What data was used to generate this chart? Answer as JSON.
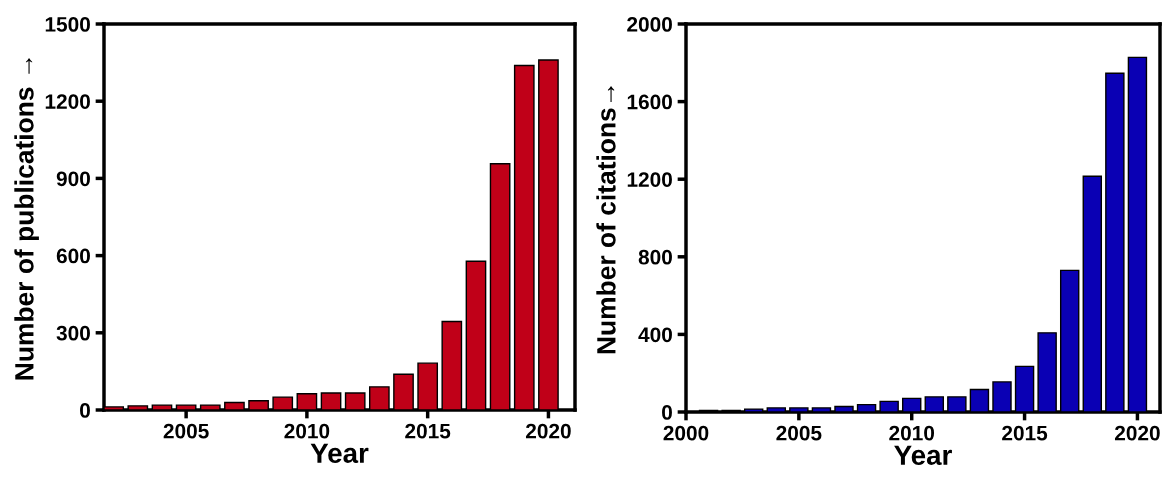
{
  "chart_data": [
    {
      "type": "bar",
      "xlabel": "Year",
      "ylabel": "Number of publications →",
      "x": [
        2002,
        2003,
        2004,
        2005,
        2006,
        2007,
        2008,
        2009,
        2010,
        2011,
        2012,
        2013,
        2014,
        2015,
        2016,
        2017,
        2018,
        2019,
        2020
      ],
      "series": [
        {
          "color": "#c00018",
          "values": [
            12,
            16,
            19,
            19,
            19,
            29,
            36,
            50,
            63,
            66,
            66,
            90,
            139,
            182,
            344,
            578,
            957,
            1339,
            1360
          ]
        }
      ],
      "xlim": [
        2001.6,
        2021.1
      ],
      "xticks": [
        2005,
        2010,
        2015,
        2020
      ],
      "ylim": [
        0,
        1500
      ],
      "yticks": [
        0,
        300,
        600,
        900,
        1200,
        1500
      ],
      "grid": false,
      "legend": false
    },
    {
      "type": "bar",
      "xlabel": "Year",
      "ylabel": "Number of citations→",
      "x": [
        2001,
        2002,
        2003,
        2004,
        2005,
        2006,
        2007,
        2008,
        2009,
        2010,
        2011,
        2012,
        2013,
        2014,
        2015,
        2016,
        2017,
        2018,
        2019,
        2020
      ],
      "series": [
        {
          "color": "#0a00b4",
          "values": [
            8,
            8,
            15,
            21,
            21,
            21,
            28,
            38,
            55,
            70,
            78,
            78,
            116,
            155,
            235,
            408,
            730,
            1215,
            1746,
            1828
          ]
        }
      ],
      "xlim": [
        2000,
        2021.0
      ],
      "xticks": [
        2000,
        2005,
        2010,
        2015,
        2020
      ],
      "ylim": [
        0,
        2000
      ],
      "yticks": [
        0,
        400,
        800,
        1200,
        1600,
        2000
      ],
      "grid": false,
      "legend": false
    }
  ]
}
